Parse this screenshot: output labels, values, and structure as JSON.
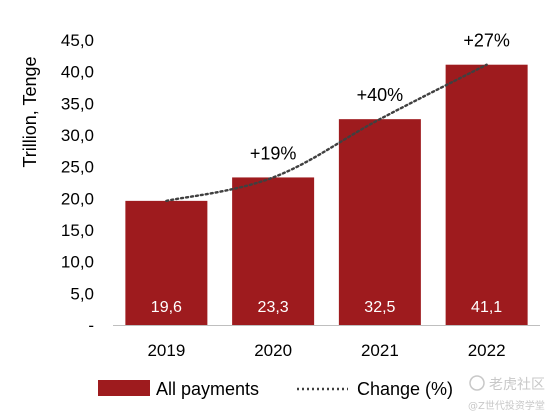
{
  "chart_data": {
    "type": "bar",
    "categories": [
      "2019",
      "2020",
      "2021",
      "2022"
    ],
    "series": [
      {
        "name": "All payments",
        "values": [
          19.6,
          23.3,
          32.5,
          41.1
        ],
        "value_labels": [
          "19,6",
          "23,3",
          "32,5",
          "41,1"
        ],
        "color": "#9e1b1e"
      },
      {
        "name": "Change (%)",
        "type": "line",
        "style": "dotted",
        "color": "#404040",
        "values": [
          null,
          19,
          40,
          27
        ],
        "value_labels": [
          "",
          "+19%",
          "+40%",
          "+27%"
        ]
      }
    ],
    "ylabel": "Trillion, Tenge",
    "xlabel": "",
    "ylim": [
      0,
      45
    ],
    "yticks": [
      0,
      5,
      10,
      15,
      20,
      25,
      30,
      35,
      40,
      45
    ],
    "ytick_labels": [
      "-",
      "5,0",
      "10,0",
      "15,0",
      "20,0",
      "25,0",
      "30,0",
      "35,0",
      "40,0",
      "45,0"
    ],
    "grid": false,
    "legend": {
      "position": "bottom",
      "entries": [
        "All payments",
        "Change (%)"
      ]
    }
  },
  "watermark": {
    "text_main": "老虎社区",
    "text_sub": "@Z世代投资学堂"
  }
}
